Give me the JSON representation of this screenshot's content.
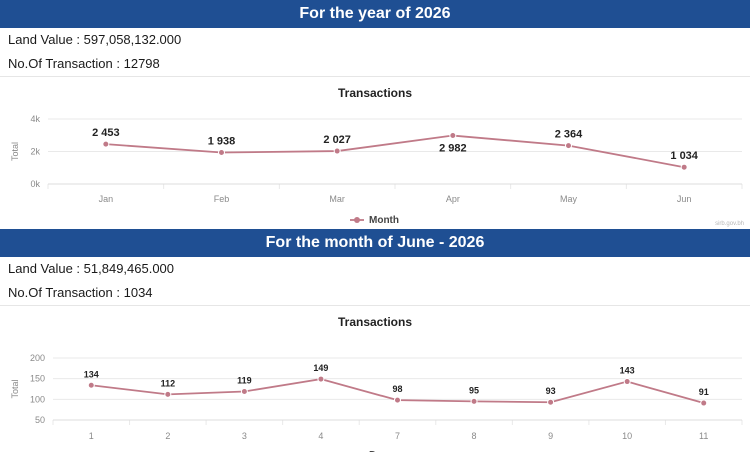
{
  "section1": {
    "banner": "For the year of 2026",
    "land_value_label": "Land Value : ",
    "land_value": "597,058,132.000",
    "transactions_label": "No.Of Transaction : ",
    "transactions": "12798"
  },
  "section2": {
    "banner": "For the month of June - 2026",
    "land_value_label": "Land Value : ",
    "land_value": "51,849,465.000",
    "transactions_label": "No.Of Transaction : ",
    "transactions": "1034"
  },
  "credit": "sirb.gov.bh",
  "colors": {
    "banner": "#1f4f93",
    "series": "#c07a88",
    "grid": "#e9e9e9"
  },
  "chart_data": [
    {
      "type": "line",
      "title": "Transactions",
      "ylabel": "Total",
      "xlabel": "",
      "categories": [
        "Jan",
        "Feb",
        "Mar",
        "Apr",
        "May",
        "Jun"
      ],
      "series": [
        {
          "name": "Month",
          "values": [
            2453,
            1938,
            2027,
            2982,
            2364,
            1034
          ],
          "labels": [
            "2 453",
            "1 938",
            "2 027",
            "2 982",
            "2 364",
            "1 034"
          ]
        }
      ],
      "ylim": [
        0,
        4000
      ],
      "yticks": [
        0,
        2000,
        4000
      ],
      "ytick_labels": [
        "0k",
        "2k",
        "4k"
      ],
      "grid": true,
      "legend": "bottom-center"
    },
    {
      "type": "line",
      "title": "Transactions",
      "ylabel": "Total",
      "xlabel": "",
      "categories": [
        "1",
        "2",
        "3",
        "4",
        "7",
        "8",
        "9",
        "10",
        "11"
      ],
      "series": [
        {
          "name": "Days",
          "values": [
            134,
            112,
            119,
            149,
            98,
            95,
            93,
            143,
            91
          ],
          "labels": [
            "134",
            "112",
            "119",
            "149",
            "98",
            "95",
            "93",
            "143",
            "91"
          ]
        }
      ],
      "ylim": [
        50,
        200
      ],
      "yticks": [
        50,
        100,
        150,
        200
      ],
      "ytick_labels": [
        "50",
        "100",
        "150",
        "200"
      ],
      "grid": true,
      "legend": "bottom-center"
    }
  ]
}
